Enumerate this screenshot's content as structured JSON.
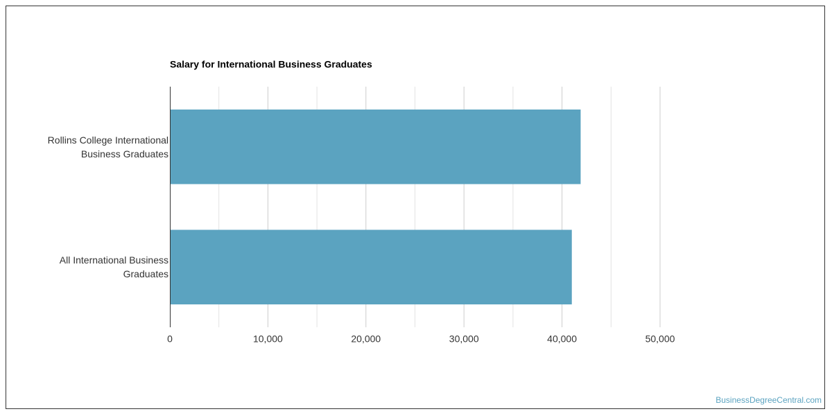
{
  "chart_data": {
    "type": "bar",
    "orientation": "horizontal",
    "title": "Salary for International Business Graduates",
    "categories": [
      "Rollins College International Business Graduates",
      "All International Business Graduates"
    ],
    "values": [
      41900,
      41000
    ],
    "color": "#5ba3c0",
    "xlim": [
      0,
      50000
    ],
    "xticks": [
      0,
      {
        "value": 10000,
        "label": "10,000"
      },
      {
        "value": 20000,
        "label": "20,000"
      },
      {
        "value": 30000,
        "label": "30,000"
      },
      {
        "value": 40000,
        "label": "40,000"
      },
      {
        "value": 50000,
        "label": "50,000"
      }
    ],
    "minor_xticks": [
      5000,
      15000,
      25000,
      35000,
      45000
    ],
    "grid": true
  },
  "footer": {
    "source": "BusinessDegreeCentral.com"
  }
}
